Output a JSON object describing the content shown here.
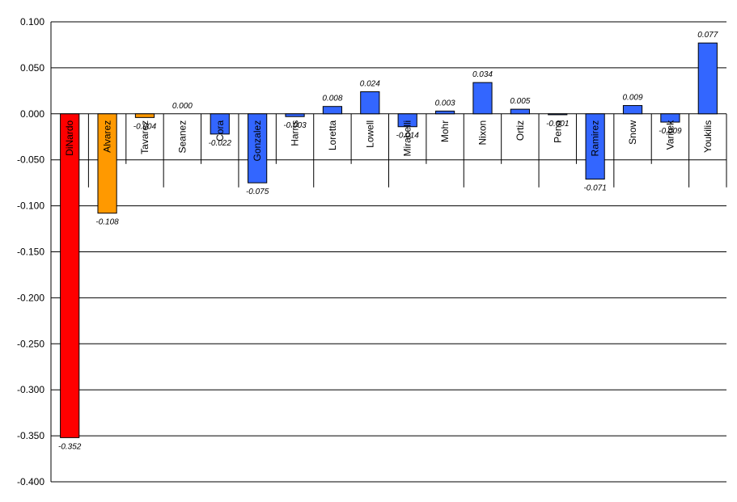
{
  "chart_data": {
    "type": "bar",
    "title": "",
    "xlabel": "",
    "ylabel": "",
    "ylim": [
      -0.4,
      0.1
    ],
    "y_ticks": [
      "0.100",
      "0.050",
      "0.000",
      "-0.050",
      "-0.100",
      "-0.150",
      "-0.200",
      "-0.250",
      "-0.300",
      "-0.350",
      "-0.400"
    ],
    "y_tick_values": [
      0.1,
      0.05,
      0,
      -0.05,
      -0.1,
      -0.15,
      -0.2,
      -0.25,
      -0.3,
      -0.35,
      -0.4
    ],
    "grid": true,
    "legend": "none",
    "categories": [
      "DiNardo",
      "Alvarez",
      "Tavarez",
      "Seanez",
      "Cora",
      "Gonzalez",
      "Harris",
      "Loretta",
      "Lowell",
      "Mirabelli",
      "Mohr",
      "Nixon",
      "Ortiz",
      "Pena",
      "Ramirez",
      "Snow",
      "Varitek",
      "Youkilis"
    ],
    "values": [
      -0.352,
      -0.108,
      -0.004,
      0.0,
      -0.022,
      -0.075,
      -0.003,
      0.008,
      0.024,
      -0.014,
      0.003,
      0.034,
      0.005,
      -0.001,
      -0.071,
      0.009,
      -0.009,
      0.077
    ],
    "value_labels": [
      "-0.352",
      "-0.108",
      "-0.004",
      "0.000",
      "-0.022",
      "-0.075",
      "-0.003",
      "0.008",
      "0.024",
      "-0.014",
      "0.003",
      "0.034",
      "0.005",
      "-0.001",
      "-0.071",
      "0.009",
      "-0.009",
      "0.077"
    ],
    "colors": [
      "#ff0000",
      "#ff9900",
      "#ff9900",
      "#ff9900",
      "#3366ff",
      "#3366ff",
      "#3366ff",
      "#3366ff",
      "#3366ff",
      "#3366ff",
      "#3366ff",
      "#3366ff",
      "#3366ff",
      "#3366ff",
      "#3366ff",
      "#3366ff",
      "#3366ff",
      "#3366ff"
    ]
  }
}
